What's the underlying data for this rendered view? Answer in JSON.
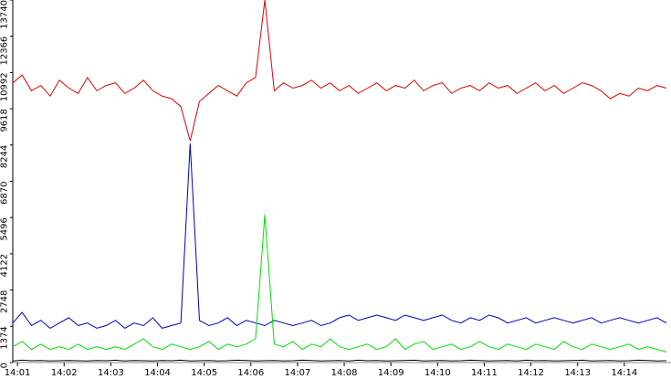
{
  "chart_data": {
    "type": "line",
    "x": [
      0.9,
      1.1,
      1.3,
      1.5,
      1.7,
      1.9,
      2.1,
      2.3,
      2.5,
      2.7,
      2.9,
      3.1,
      3.3,
      3.5,
      3.7,
      3.9,
      4.1,
      4.3,
      4.5,
      4.7,
      4.9,
      5.1,
      5.3,
      5.5,
      5.7,
      5.9,
      6.1,
      6.3,
      6.5,
      6.7,
      6.9,
      7.1,
      7.3,
      7.5,
      7.7,
      7.9,
      8.1,
      8.3,
      8.5,
      8.7,
      8.9,
      9.1,
      9.3,
      9.5,
      9.7,
      9.9,
      10.1,
      10.3,
      10.5,
      10.7,
      10.9,
      11.1,
      11.3,
      11.5,
      11.7,
      11.9,
      12.1,
      12.3,
      12.5,
      12.7,
      12.9,
      13.1,
      13.3,
      13.5,
      13.7,
      13.9,
      14.1,
      14.3,
      14.5,
      14.7,
      14.9
    ],
    "series": [
      {
        "color": "#e00000",
        "values": [
          10600,
          10900,
          10300,
          10500,
          10100,
          10700,
          10400,
          10200,
          10800,
          10300,
          10500,
          10600,
          10200,
          10400,
          10700,
          10300,
          10100,
          10000,
          9700,
          8400,
          9900,
          10200,
          10500,
          10300,
          10100,
          10600,
          10800,
          13740,
          10300,
          10600,
          10400,
          10500,
          10700,
          10400,
          10600,
          10300,
          10500,
          10200,
          10400,
          10600,
          10300,
          10500,
          10400,
          10700,
          10300,
          10500,
          10600,
          10200,
          10400,
          10500,
          10300,
          10600,
          10400,
          10500,
          10200,
          10400,
          10600,
          10300,
          10500,
          10200,
          10400,
          10600,
          10500,
          10300,
          10000,
          10200,
          10100,
          10400,
          10300,
          10500,
          10400
        ]
      },
      {
        "color": "#0000c0",
        "values": [
          1500,
          1900,
          1400,
          1600,
          1300,
          1500,
          1700,
          1400,
          1500,
          1300,
          1400,
          1600,
          1300,
          1500,
          1400,
          1700,
          1300,
          1400,
          1500,
          8300,
          1600,
          1400,
          1500,
          1700,
          1400,
          1600,
          1500,
          1400,
          1600,
          1500,
          1400,
          1500,
          1600,
          1400,
          1500,
          1700,
          1800,
          1600,
          1700,
          1800,
          1700,
          1600,
          1800,
          1700,
          1600,
          1700,
          1800,
          1600,
          1500,
          1700,
          1600,
          1800,
          1700,
          1500,
          1600,
          1700,
          1500,
          1600,
          1700,
          1600,
          1500,
          1600,
          1700,
          1500,
          1600,
          1700,
          1600,
          1500,
          1600,
          1700,
          1500
        ]
      },
      {
        "color": "#00e000",
        "values": [
          600,
          800,
          500,
          700,
          500,
          600,
          500,
          700,
          500,
          600,
          500,
          600,
          500,
          700,
          900,
          600,
          500,
          700,
          600,
          500,
          600,
          800,
          500,
          700,
          600,
          700,
          900,
          5600,
          700,
          600,
          800,
          500,
          700,
          600,
          900,
          600,
          500,
          600,
          700,
          500,
          600,
          900,
          500,
          700,
          800,
          500,
          600,
          700,
          500,
          600,
          800,
          600,
          500,
          700,
          600,
          500,
          700,
          600,
          500,
          800,
          600,
          500,
          700,
          600,
          500,
          600,
          700,
          500,
          600,
          500,
          400
        ]
      },
      {
        "color": "#000000",
        "values": [
          60,
          90,
          70,
          80,
          60,
          70,
          80,
          70,
          60,
          80,
          70,
          90,
          60,
          80,
          70,
          60,
          80,
          70,
          90,
          60,
          70,
          80,
          60,
          70,
          90,
          80,
          60,
          70,
          80,
          60,
          70,
          90,
          80,
          60,
          70,
          80,
          60,
          90,
          70,
          80,
          60,
          70,
          80,
          90,
          60,
          70,
          80,
          60,
          70,
          90,
          80,
          60,
          70,
          80,
          60,
          90,
          70,
          80,
          60,
          70,
          80,
          90,
          60,
          70,
          80,
          60,
          70,
          90,
          80,
          60,
          70
        ]
      }
    ],
    "xlim": [
      0.9,
      15.0
    ],
    "xticks": [
      {
        "value": 1,
        "label": "14:01"
      },
      {
        "value": 2,
        "label": "14:02"
      },
      {
        "value": 3,
        "label": "14:03"
      },
      {
        "value": 4,
        "label": "14:04"
      },
      {
        "value": 5,
        "label": "14:05"
      },
      {
        "value": 6,
        "label": "14:06"
      },
      {
        "value": 7,
        "label": "14:07"
      },
      {
        "value": 8,
        "label": "14:08"
      },
      {
        "value": 9,
        "label": "14:09"
      },
      {
        "value": 10,
        "label": "14:10"
      },
      {
        "value": 11,
        "label": "14:11"
      },
      {
        "value": 12,
        "label": "14:12"
      },
      {
        "value": 13,
        "label": "14:13"
      },
      {
        "value": 14,
        "label": "14:14"
      }
    ],
    "ylim": [
      0,
      13740
    ],
    "yticks": [
      0,
      1374,
      2748,
      4122,
      5496,
      6870,
      8244,
      9618,
      10992,
      12366,
      13740
    ]
  }
}
